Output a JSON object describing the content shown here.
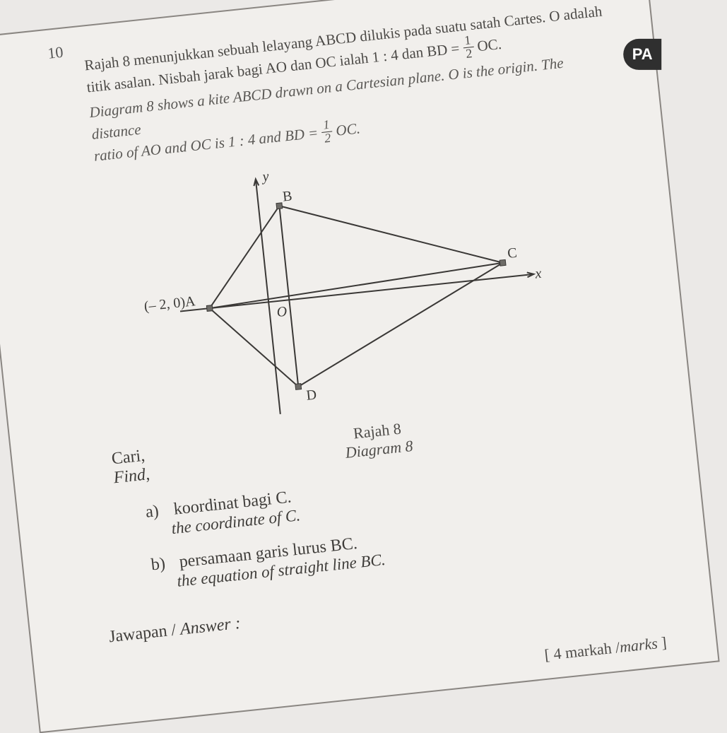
{
  "question_number": "10",
  "text_ms_line1": "Rajah 8 menunjukkan sebuah lelayang ABCD dilukis pada suatu satah Cartes. O adalah",
  "text_ms_line2_a": "titik asalan. Nisbah jarak bagi AO dan OC ialah 1 : 4 dan BD = ",
  "text_ms_line2_b": " OC.",
  "text_en_line1": "Diagram 8 shows a kite ABCD drawn on a Cartesian plane. O is the origin. The distance",
  "text_en_line2_a": "ratio of AO and OC is 1 : 4 and BD = ",
  "text_en_line2_b": " OC.",
  "frac_num": "1",
  "frac_den": "2",
  "badge": "PA",
  "diagram": {
    "point_A_label": "(– 2, 0)A",
    "label_B": "B",
    "label_C": "C",
    "label_D": "D",
    "label_O": "O",
    "axis_x": "x",
    "axis_y": "y",
    "A": [
      -2,
      0
    ],
    "B": [
      0.7,
      2.6
    ],
    "C": [
      8,
      0.4
    ],
    "D": [
      0.7,
      -2.4
    ],
    "O": [
      0,
      0
    ],
    "stroke": "#3a3836",
    "stroke_width": 2
  },
  "caption_ms": "Rajah 8",
  "caption_en": "Diagram 8",
  "find_ms": "Cari,",
  "find_en": "Find,",
  "parts": {
    "a": {
      "lbl": "a)",
      "ms": "koordinat bagi C.",
      "en": "the coordinate of C."
    },
    "b": {
      "lbl": "b)",
      "ms": "persamaan garis lurus BC.",
      "en": "the equation of straight line BC."
    }
  },
  "answer_ms": "Jawapan / ",
  "answer_en": "Answer :",
  "marks_open": "[ 4 markah /",
  "marks_en": "marks",
  "marks_close": " ]"
}
